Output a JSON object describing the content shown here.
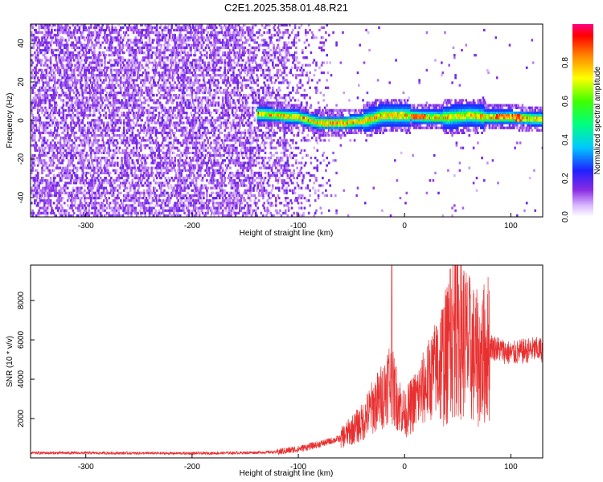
{
  "figure_title": "C2E1.2025.358.01.48.R21",
  "chart_data": [
    {
      "type": "heatmap",
      "title": "C2E1.2025.358.01.48.R21",
      "xlabel": "Height of straight line (km)",
      "ylabel": "Frequency (Hz)",
      "xlim": [
        -352,
        130
      ],
      "ylim": [
        -50,
        50
      ],
      "x_ticks": [
        -300,
        -200,
        -100,
        0,
        100
      ],
      "y_ticks": [
        -40,
        -20,
        0,
        20,
        40
      ],
      "colorbar": {
        "label": "Normalized spectral amplitude",
        "range": [
          0,
          1
        ],
        "ticks": [
          0.0,
          0.2,
          0.4,
          0.6,
          0.8
        ]
      },
      "description_points": {
        "noise_region_x": [
          -352,
          -70
        ],
        "signal_band_x": [
          -140,
          130
        ],
        "signal_center_hz": [
          {
            "x": -140,
            "f": 3
          },
          {
            "x": -100,
            "f": 1
          },
          {
            "x": -80,
            "f": -2
          },
          {
            "x": -60,
            "f": -2
          },
          {
            "x": -40,
            "f": -1
          },
          {
            "x": -20,
            "f": 2
          },
          {
            "x": 0,
            "f": 2
          },
          {
            "x": 20,
            "f": 1
          },
          {
            "x": 40,
            "f": 1
          },
          {
            "x": 60,
            "f": 2
          },
          {
            "x": 80,
            "f": 1
          },
          {
            "x": 100,
            "f": 1
          },
          {
            "x": 130,
            "f": 0
          }
        ]
      }
    },
    {
      "type": "line",
      "xlabel": "Height of straight line (km)",
      "ylabel": "SNR (10 * v/v)",
      "xlim": [
        -352,
        130
      ],
      "ylim": [
        0,
        9800
      ],
      "x_ticks": [
        -300,
        -200,
        -100,
        0,
        100
      ],
      "y_ticks": [
        2000,
        4000,
        6000,
        8000
      ],
      "series": [
        {
          "name": "SNR",
          "color": "#e83030",
          "x": [
            -352,
            -300,
            -250,
            -200,
            -150,
            -120,
            -100,
            -80,
            -60,
            -50,
            -40,
            -30,
            -20,
            -15,
            -10,
            0,
            10,
            20,
            30,
            40,
            45,
            50,
            60,
            70,
            80,
            90,
            100,
            110,
            120,
            130
          ],
          "y": [
            250,
            250,
            240,
            230,
            260,
            300,
            450,
            700,
            1000,
            1400,
            1800,
            2600,
            3200,
            4000,
            3400,
            2200,
            2900,
            3700,
            4600,
            5200,
            6200,
            6700,
            5600,
            4900,
            5700,
            5500,
            5300,
            5400,
            5500,
            5500
          ],
          "peaks": [
            {
              "x": -12,
              "y": 9800
            },
            {
              "x": 43,
              "y": 9600
            },
            {
              "x": 48,
              "y": 9800
            }
          ]
        }
      ]
    }
  ]
}
